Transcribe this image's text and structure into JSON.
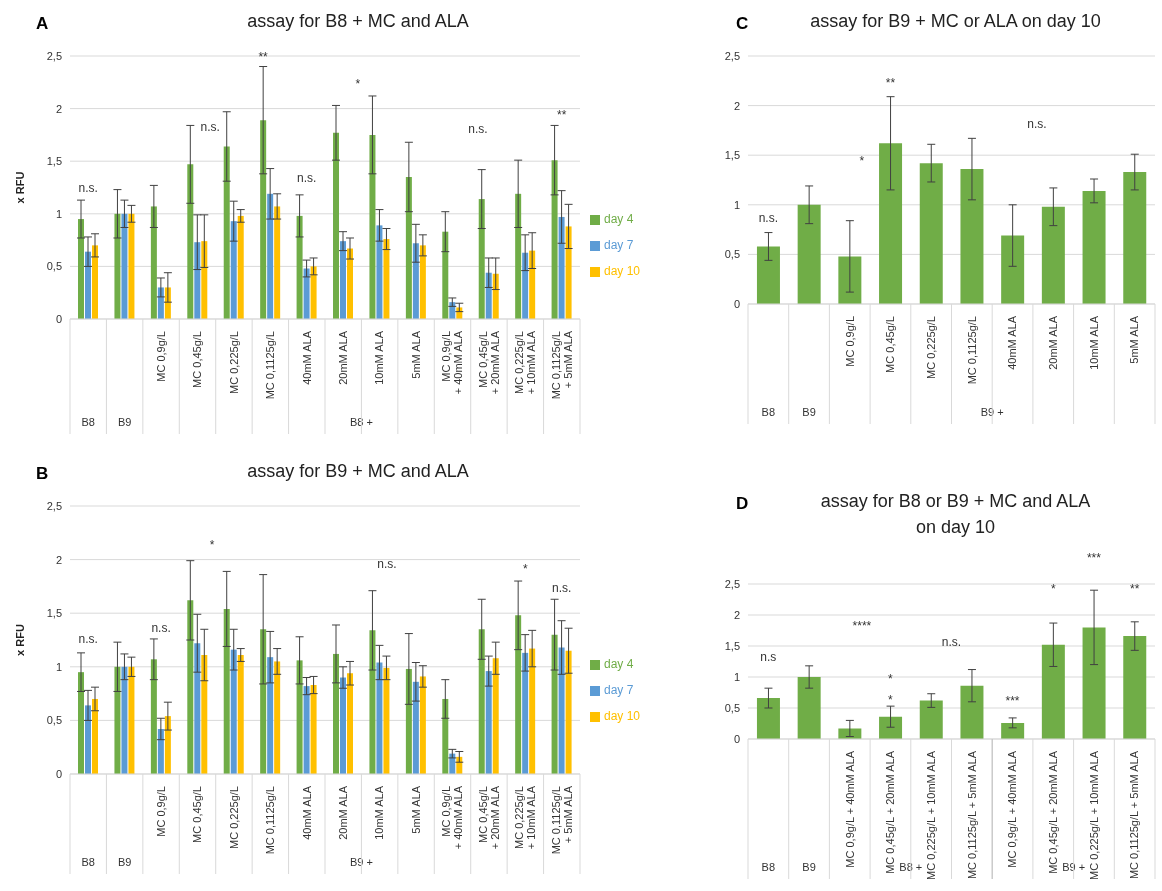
{
  "chart_data": [
    {
      "type": "bar",
      "title": "assay for B8 + MC and ALA",
      "ylabel": "x RFU",
      "categories": [
        null,
        null,
        "MC 0,9g/L",
        "MC 0,45g/L",
        "MC 0,225g/L",
        "MC 0,1125g/L",
        "40mM ALA",
        "20mM ALA",
        "10mM ALA",
        "5mM ALA",
        "MC 0,9g/L\n+ 40mM ALA",
        "MC 0,45g/L\n+ 20mM ALA",
        "MC 0,225g/L\n+ 10mM ALA",
        "MC 0,1125g/L\n+ 5mM ALA"
      ],
      "series": [
        {
          "name": "day 4",
          "color": "#70ad47",
          "values": [
            0.95,
            1,
            1.07,
            1.47,
            1.64,
            1.89,
            0.98,
            1.77,
            1.75,
            1.35,
            0.83,
            1.14,
            1.19,
            1.51
          ],
          "errors": [
            0.18,
            0.23,
            0.2,
            0.37,
            0.33,
            0.51,
            0.2,
            0.26,
            0.37,
            0.33,
            0.19,
            0.28,
            0.32,
            0.33
          ]
        },
        {
          "name": "day 7",
          "color": "#5b9bd5",
          "values": [
            0.64,
            1,
            0.3,
            0.73,
            0.93,
            1.19,
            0.48,
            0.74,
            0.89,
            0.72,
            0.16,
            0.44,
            0.63,
            0.97
          ],
          "errors": [
            0.14,
            0.13,
            0.09,
            0.26,
            0.19,
            0.24,
            0.08,
            0.09,
            0.15,
            0.18,
            0.04,
            0.14,
            0.17,
            0.25
          ]
        },
        {
          "name": "day 10",
          "color": "#ffc000",
          "values": [
            0.7,
            1,
            0.3,
            0.74,
            0.98,
            1.07,
            0.5,
            0.67,
            0.76,
            0.7,
            0.11,
            0.43,
            0.65,
            0.88
          ],
          "errors": [
            0.11,
            0.08,
            0.14,
            0.25,
            0.06,
            0.12,
            0.08,
            0.1,
            0.1,
            0.1,
            0.04,
            0.15,
            0.17,
            0.21
          ]
        }
      ],
      "ylim": [
        0,
        2.5
      ],
      "yticks": [
        0,
        {
          "value": 0.5,
          "label": "0,5"
        },
        1,
        {
          "value": 1.5,
          "label": "1,5"
        },
        2,
        {
          "value": 2.5,
          "label": "2,5"
        }
      ],
      "grid": "y",
      "legend": "right",
      "annotations": [
        "A",
        "B8",
        "B9",
        "B8 +",
        "n.s.",
        "**",
        "n.s.",
        "n.s.",
        "*",
        "n.s.",
        "**"
      ]
    },
    {
      "type": "bar",
      "title": "assay for B9 + MC and ALA",
      "ylabel": "x RFU",
      "categories": [
        null,
        null,
        "MC 0,9g/L",
        "MC 0,45g/L",
        "MC 0,225g/L",
        "MC 0,1125g/L",
        "40mM ALA",
        "20mM ALA",
        "10mM ALA",
        "5mM ALA",
        "MC 0,9g/L\n+ 40mM ALA",
        "MC 0,45g/L\n+ 20mM ALA",
        "MC 0,225g/L\n+ 10mM ALA",
        "MC 0,1125g/L\n+ 5mM ALA"
      ],
      "series": [
        {
          "name": "day 4",
          "color": "#70ad47",
          "values": [
            0.95,
            1,
            1.07,
            1.62,
            1.54,
            1.35,
            1.06,
            1.12,
            1.34,
            0.98,
            0.7,
            1.35,
            1.48,
            1.3
          ],
          "errors": [
            0.18,
            0.23,
            0.19,
            0.37,
            0.35,
            0.51,
            0.22,
            0.27,
            0.37,
            0.33,
            0.18,
            0.28,
            0.32,
            0.33
          ]
        },
        {
          "name": "day 7",
          "color": "#5b9bd5",
          "values": [
            0.64,
            1,
            0.42,
            1.22,
            1.16,
            1.09,
            0.82,
            0.9,
            1.04,
            0.86,
            0.19,
            0.96,
            1.13,
            1.18
          ],
          "errors": [
            0.14,
            0.12,
            0.1,
            0.27,
            0.19,
            0.24,
            0.08,
            0.1,
            0.16,
            0.18,
            0.04,
            0.14,
            0.17,
            0.25
          ]
        },
        {
          "name": "day 10",
          "color": "#ffc000",
          "values": [
            0.7,
            1,
            0.54,
            1.11,
            1.11,
            1.05,
            0.83,
            0.94,
            0.99,
            0.91,
            0.16,
            1.08,
            1.17,
            1.15
          ],
          "errors": [
            0.11,
            0.09,
            0.13,
            0.24,
            0.06,
            0.12,
            0.08,
            0.11,
            0.11,
            0.1,
            0.05,
            0.15,
            0.17,
            0.21
          ]
        }
      ],
      "ylim": [
        0,
        2.5
      ],
      "yticks": [
        0,
        {
          "value": 0.5,
          "label": "0,5"
        },
        1,
        {
          "value": 1.5,
          "label": "1,5"
        },
        2,
        {
          "value": 2.5,
          "label": "2,5"
        }
      ],
      "grid": "y",
      "legend": "right",
      "annotations": [
        "B",
        "B8",
        "B9",
        "B9 +",
        "n.s.",
        "*",
        "n.s.",
        "n.s.",
        "*",
        "n.s."
      ]
    },
    {
      "type": "bar",
      "title": "assay for B9 + MC or ALA on day 10",
      "categories": [
        null,
        null,
        "MC 0,9g/L",
        "MC 0,45g/L",
        "MC 0,225g/L",
        "MC 0,1125g/L",
        "40mM ALA",
        "20mM ALA",
        "10mM ALA",
        "5mM ALA"
      ],
      "color": "#70ad47",
      "values": [
        0.58,
        1,
        0.48,
        1.62,
        1.42,
        1.36,
        0.69,
        0.98,
        1.14,
        1.33
      ],
      "errors": [
        0.14,
        0.19,
        0.36,
        0.47,
        0.19,
        0.31,
        0.31,
        0.19,
        0.12,
        0.18
      ],
      "ylim": [
        0,
        2.5
      ],
      "yticks": [
        0,
        {
          "value": 0.5,
          "label": "0,5"
        },
        1,
        {
          "value": 1.5,
          "label": "1,5"
        },
        2,
        {
          "value": 2.5,
          "label": "2,5"
        }
      ],
      "grid": "y",
      "annotations": [
        "C",
        "B8",
        "B9",
        "B9 +",
        "n.s.",
        "*",
        "**",
        "n.s."
      ]
    },
    {
      "type": "bar",
      "title": "assay for B8 or B9 + MC and ALA\non day 10",
      "categories": [
        null,
        null,
        "MC 0,9g/L + 40mM ALA",
        "MC 0,45g/L + 20mM ALA",
        "MC 0,225g/L + 10mM ALA",
        "MC 0,1125g/L + 5mM ALA",
        "MC 0,9g/L + 40mM ALA",
        "MC 0,45g/L + 20mM ALA",
        "MC 0,225g/L + 10mM ALA",
        "MC 0,1125g/L + 5mM ALA"
      ],
      "color": "#70ad47",
      "values": [
        0.66,
        1,
        0.17,
        0.36,
        0.62,
        0.86,
        0.26,
        1.52,
        1.8,
        1.66
      ],
      "errors": [
        0.16,
        0.18,
        0.13,
        0.17,
        0.11,
        0.26,
        0.08,
        0.35,
        0.6,
        0.23
      ],
      "ylim": [
        0,
        2.5
      ],
      "yticks": [
        0,
        {
          "value": 0.5,
          "label": "0,5"
        },
        1,
        {
          "value": 1.5,
          "label": "1,5"
        },
        2,
        {
          "value": 2.5,
          "label": "2,5"
        }
      ],
      "grid": "y",
      "annotations": [
        "D",
        "B8",
        "B9",
        "B8 +",
        "B9 +",
        "n.s",
        "****",
        "*",
        "*",
        "n.s.",
        "***",
        "*",
        "***",
        "**"
      ]
    }
  ]
}
